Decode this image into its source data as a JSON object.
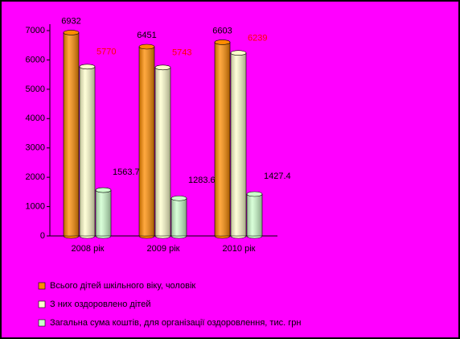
{
  "chart_data": {
    "type": "bar",
    "categories": [
      "2008 рік",
      "2009 рік",
      "2010 рік"
    ],
    "series": [
      {
        "name": "Всього дітей шкільного віку, чоловік",
        "color": "#ff8c00",
        "label_color": "#000000",
        "values": [
          6932,
          6451,
          6603
        ]
      },
      {
        "name": "З них оздоровлено дітей",
        "color": "#ffffcc",
        "label_color": "#ff0000",
        "values": [
          5770,
          5743,
          6239
        ]
      },
      {
        "name": "Загальна сума коштів, для організації оздоровлення, тис. грн",
        "color": "#ccffcc",
        "label_color": "#000000",
        "values": [
          1563.7,
          1283.6,
          1427.4
        ]
      }
    ],
    "ylim": [
      0,
      7000
    ],
    "yticks": [
      0,
      1000,
      2000,
      3000,
      4000,
      5000,
      6000,
      7000
    ],
    "grid": false
  }
}
